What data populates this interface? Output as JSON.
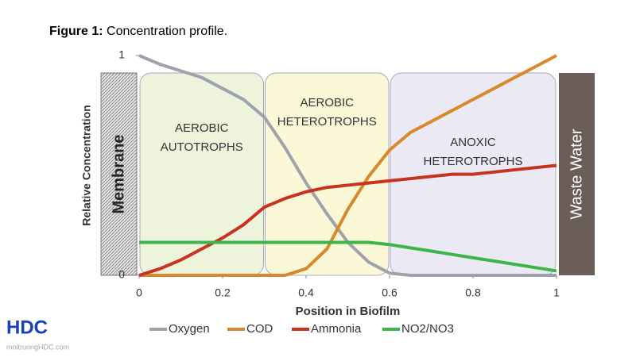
{
  "figure": {
    "caption_label": "Figure 1:",
    "caption_text": "Concentration profile."
  },
  "watermark": {
    "logo": "HDC",
    "site": "moitruongHDC.com"
  },
  "chart_data": {
    "type": "line",
    "xlabel": "Position in Biofilm",
    "ylabel": "Relative Concentration",
    "xlim": [
      0,
      1
    ],
    "ylim": [
      0,
      1
    ],
    "xticks": [
      0,
      0.2,
      0.4,
      0.6,
      0.8,
      1
    ],
    "yticks": [
      0,
      1
    ],
    "left_label": "Membrane",
    "right_label": "Waste Water",
    "zones": [
      {
        "lines": [
          "AEROBIC",
          "AUTOTROPHS"
        ],
        "range": [
          0,
          0.3
        ],
        "color": "#eef4dc"
      },
      {
        "lines": [
          "AEROBIC",
          "HETEROTROPHS"
        ],
        "range": [
          0.3,
          0.6
        ],
        "color": "#fbf8d8"
      },
      {
        "lines": [
          "ANOXIC",
          "HETEROTROPHS"
        ],
        "range": [
          0.6,
          1
        ],
        "color": "#eae9f4"
      }
    ],
    "x": [
      0,
      0.05,
      0.1,
      0.15,
      0.2,
      0.25,
      0.3,
      0.35,
      0.4,
      0.45,
      0.5,
      0.55,
      0.6,
      0.65,
      0.7,
      0.75,
      0.8,
      0.85,
      0.9,
      0.95,
      1
    ],
    "series": [
      {
        "name": "Oxygen",
        "color": "#9ea3ab",
        "values": [
          1,
          0.96,
          0.93,
          0.9,
          0.85,
          0.8,
          0.72,
          0.58,
          0.42,
          0.28,
          0.15,
          0.06,
          0.01,
          0,
          0,
          0,
          0,
          0,
          0,
          0,
          0
        ]
      },
      {
        "name": "COD",
        "color": "#d9892b",
        "values": [
          0,
          0,
          0,
          0,
          0,
          0,
          0,
          0,
          0.03,
          0.12,
          0.3,
          0.45,
          0.57,
          0.65,
          0.7,
          0.75,
          0.8,
          0.85,
          0.9,
          0.95,
          1
        ]
      },
      {
        "name": "Ammonia",
        "color": "#c8321f",
        "values": [
          0,
          0.03,
          0.07,
          0.12,
          0.17,
          0.23,
          0.31,
          0.35,
          0.38,
          0.4,
          0.41,
          0.42,
          0.43,
          0.44,
          0.45,
          0.46,
          0.46,
          0.47,
          0.48,
          0.49,
          0.5
        ]
      },
      {
        "name": "NO2/NO3",
        "color": "#3cb54a",
        "values": [
          0.15,
          0.15,
          0.15,
          0.15,
          0.15,
          0.15,
          0.15,
          0.15,
          0.15,
          0.15,
          0.15,
          0.15,
          0.14,
          0.125,
          0.11,
          0.095,
          0.08,
          0.065,
          0.05,
          0.035,
          0.02
        ]
      }
    ]
  }
}
